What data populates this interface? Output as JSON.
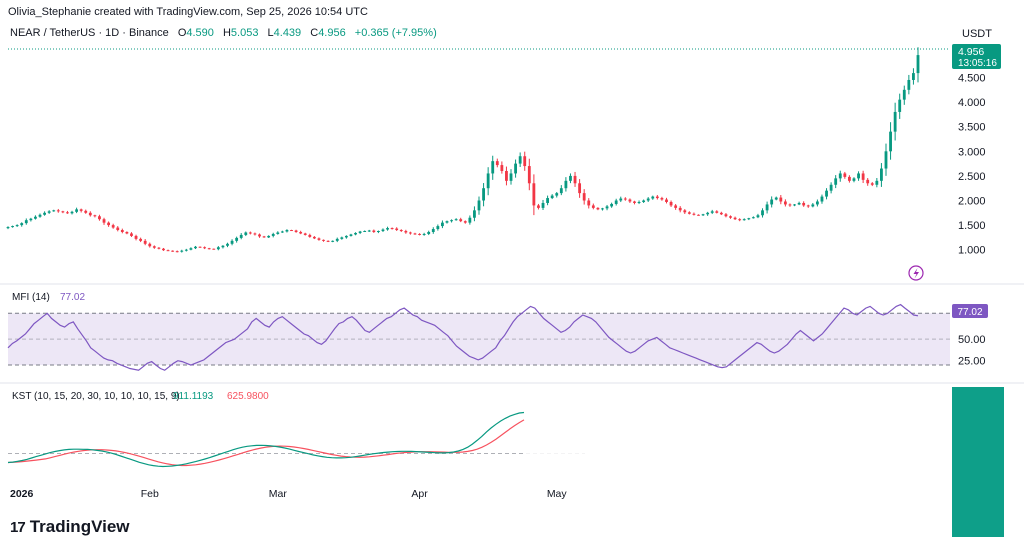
{
  "header": {
    "credit": "Olivia_Stephanie created with TradingView.com, Sep 25, 2026 10:54 UTC",
    "symbol": "NEAR / TetherUS · 1D · Binance",
    "o_label": "O",
    "o_value": "4.590",
    "h_label": "H",
    "h_value": "5.053",
    "l_label": "L",
    "l_value": "4.439",
    "c_label": "C",
    "c_value": "4.956",
    "change": "+0.365 (+7.95%)",
    "currency": "USDT"
  },
  "colors": {
    "up": "#089981",
    "down": "#f23645",
    "mfi": "#7e57c2",
    "mfi_fill": "#ede7f6",
    "kst": "#089981",
    "kst_signal": "#f7525f",
    "grid": "#e0e3eb",
    "axis_text": "#131722"
  },
  "price_badge": {
    "value": "4.956",
    "countdown": "13:05:16"
  },
  "mfi_badge": "77.02",
  "footer": {
    "brand": "TradingView"
  },
  "chart_data": [
    {
      "type": "candlestick",
      "title": "NEAR / TetherUS · 1D · Binance",
      "yticks": [
        "1.000",
        "1.500",
        "2.000",
        "2.500",
        "3.000",
        "3.500",
        "4.000",
        "4.500"
      ],
      "ylim": [
        0.75,
        5.1
      ],
      "xticks": [
        "2026",
        "Feb",
        "Mar",
        "Apr",
        "May"
      ],
      "start_date": "2026-01-01",
      "close": [
        1.46,
        1.48,
        1.5,
        1.54,
        1.6,
        1.63,
        1.67,
        1.71,
        1.75,
        1.78,
        1.8,
        1.78,
        1.76,
        1.74,
        1.77,
        1.82,
        1.79,
        1.75,
        1.7,
        1.68,
        1.62,
        1.55,
        1.5,
        1.45,
        1.4,
        1.36,
        1.33,
        1.28,
        1.22,
        1.18,
        1.12,
        1.07,
        1.04,
        1.02,
        0.99,
        0.98,
        0.97,
        0.96,
        0.98,
        1.0,
        1.03,
        1.06,
        1.05,
        1.03,
        1.02,
        1.01,
        1.05,
        1.08,
        1.12,
        1.18,
        1.24,
        1.3,
        1.35,
        1.33,
        1.31,
        1.27,
        1.25,
        1.28,
        1.32,
        1.35,
        1.37,
        1.4,
        1.39,
        1.36,
        1.33,
        1.3,
        1.26,
        1.23,
        1.2,
        1.18,
        1.17,
        1.18,
        1.22,
        1.25,
        1.28,
        1.31,
        1.34,
        1.37,
        1.38,
        1.39,
        1.36,
        1.38,
        1.41,
        1.44,
        1.43,
        1.4,
        1.38,
        1.35,
        1.33,
        1.32,
        1.3,
        1.32,
        1.36,
        1.42,
        1.48,
        1.55,
        1.58,
        1.6,
        1.62,
        1.58,
        1.55,
        1.65,
        1.8,
        2.0,
        2.25,
        2.55,
        2.8,
        2.72,
        2.6,
        2.4,
        2.55,
        2.75,
        2.9,
        2.7,
        2.35,
        1.9,
        1.85,
        1.95,
        2.05,
        2.1,
        2.15,
        2.25,
        2.4,
        2.5,
        2.35,
        2.15,
        2.0,
        1.9,
        1.85,
        1.82,
        1.84,
        1.88,
        1.93,
        2.0,
        2.04,
        2.02,
        1.98,
        1.95,
        1.97,
        2.0,
        2.04,
        2.08,
        2.05,
        2.02,
        1.97,
        1.9,
        1.85,
        1.8,
        1.76,
        1.73,
        1.71,
        1.7,
        1.72,
        1.75,
        1.78,
        1.75,
        1.72,
        1.68,
        1.65,
        1.62,
        1.6,
        1.62,
        1.64,
        1.66,
        1.7,
        1.8,
        1.92,
        2.02,
        2.06,
        1.98,
        1.92,
        1.9,
        1.92,
        1.95,
        1.9,
        1.88,
        1.92,
        1.98,
        2.08,
        2.2,
        2.32,
        2.45,
        2.55,
        2.48,
        2.4,
        2.45,
        2.55,
        2.42,
        2.35,
        2.32,
        2.4,
        2.65,
        3.0,
        3.4,
        3.8,
        4.05,
        4.25,
        4.45,
        4.59,
        4.956
      ]
    },
    {
      "type": "line",
      "title": "MFI (14)",
      "last_value": "77.02",
      "yticks": [
        "50.00",
        "25.00"
      ],
      "bands": [
        80,
        50,
        20
      ],
      "ylim": [
        5,
        100
      ],
      "values": [
        40,
        45,
        48,
        52,
        56,
        62,
        68,
        72,
        76,
        80,
        74,
        70,
        66,
        64,
        68,
        70,
        62,
        55,
        48,
        40,
        36,
        32,
        28,
        26,
        25,
        22,
        20,
        18,
        16,
        15,
        14,
        18,
        22,
        24,
        20,
        16,
        14,
        18,
        22,
        25,
        24,
        22,
        20,
        22,
        24,
        26,
        30,
        34,
        38,
        42,
        46,
        48,
        50,
        54,
        58,
        62,
        70,
        74,
        70,
        66,
        64,
        70,
        74,
        76,
        72,
        68,
        64,
        60,
        56,
        54,
        50,
        46,
        44,
        48,
        55,
        62,
        68,
        70,
        74,
        76,
        72,
        66,
        60,
        58,
        62,
        66,
        70,
        74,
        76,
        80,
        84,
        86,
        82,
        78,
        76,
        72,
        70,
        68,
        66,
        62,
        58,
        54,
        48,
        42,
        38,
        34,
        30,
        28,
        26,
        28,
        32,
        36,
        40,
        48,
        54,
        62,
        70,
        76,
        80,
        84,
        88,
        86,
        80,
        74,
        70,
        66,
        62,
        58,
        60,
        64,
        70,
        74,
        78,
        76,
        74,
        70,
        64,
        58,
        52,
        48,
        44,
        40,
        36,
        34,
        36,
        40,
        44,
        48,
        50,
        52,
        48,
        44,
        40,
        38,
        36,
        34,
        32,
        30,
        28,
        26,
        24,
        22,
        20,
        18,
        17,
        18,
        22,
        26,
        30,
        34,
        38,
        42,
        46,
        44,
        40,
        36,
        34,
        36,
        40,
        44,
        50,
        56,
        60,
        56,
        52,
        48,
        52,
        56,
        62,
        68,
        74,
        80,
        86,
        84,
        80,
        78,
        82,
        86,
        88,
        84,
        80,
        78,
        80,
        84,
        88,
        90,
        86,
        82,
        78,
        77.02
      ]
    },
    {
      "type": "line",
      "title": "KST (10, 15, 20, 30, 10, 10, 10, 15, 9)",
      "series": [
        {
          "name": "KST",
          "last_value": "911.1193"
        },
        {
          "name": "Signal",
          "last_value": "625.9800"
        }
      ],
      "ylim": [
        -500,
        1100
      ],
      "kst": [
        -200,
        -190,
        -175,
        -155,
        -130,
        -100,
        -70,
        -40,
        -10,
        20,
        45,
        65,
        80,
        90,
        95,
        96,
        94,
        90,
        82,
        70,
        55,
        35,
        10,
        -20,
        -55,
        -90,
        -125,
        -160,
        -195,
        -225,
        -250,
        -270,
        -282,
        -288,
        -285,
        -278,
        -265,
        -248,
        -228,
        -205,
        -180,
        -152,
        -122,
        -90,
        -55,
        -20,
        15,
        50,
        85,
        115,
        140,
        160,
        172,
        180,
        182,
        178,
        170,
        158,
        142,
        122,
        98,
        72,
        45,
        20,
        -5,
        -30,
        -52,
        -70,
        -84,
        -94,
        -98,
        -98,
        -94,
        -85,
        -72,
        -56,
        -38,
        -20,
        -4,
        10,
        22,
        32,
        40,
        45,
        48,
        48,
        46,
        42,
        36,
        30,
        24,
        18,
        14,
        14,
        20,
        34,
        56,
        90,
        140,
        210,
        290,
        380,
        480,
        570,
        650,
        720,
        780,
        830,
        870,
        900,
        911
      ]
    }
  ]
}
